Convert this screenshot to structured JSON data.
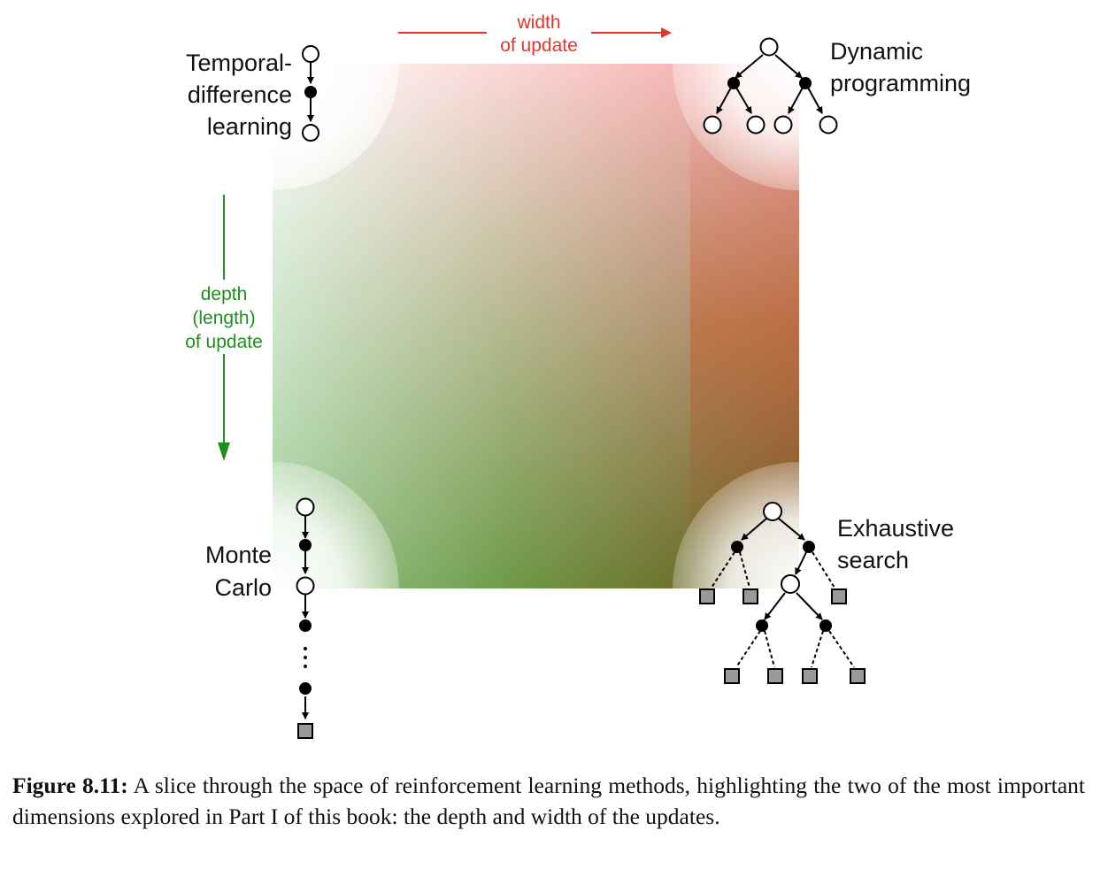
{
  "axes": {
    "width": {
      "line1": "width",
      "line2": "of update",
      "color": "#e8322b"
    },
    "depth": {
      "line1": "depth",
      "line2": "(length)",
      "line3": "of update",
      "color": "#1f8f1f"
    }
  },
  "corners": {
    "td": {
      "line1": "Temporal-",
      "line2": "difference",
      "line3": "learning"
    },
    "dp": {
      "line1": "Dynamic",
      "line2": "programming"
    },
    "mc": {
      "line1": "Monte",
      "line2": "Carlo"
    },
    "es": {
      "line1": "Exhaustive",
      "line2": "search"
    }
  },
  "gradient_colors": {
    "top_left": "#ffffff",
    "top_right": "#f29a9a",
    "bottom_left": "#8fc98f",
    "bottom_right": "#8a6a1a"
  },
  "caption": {
    "label": "Figure 8.11:",
    "text": "A slice through the space of reinforcement learning methods, highlighting the two of the most important dimensions explored in Part I of this book: the depth and width of the updates."
  }
}
